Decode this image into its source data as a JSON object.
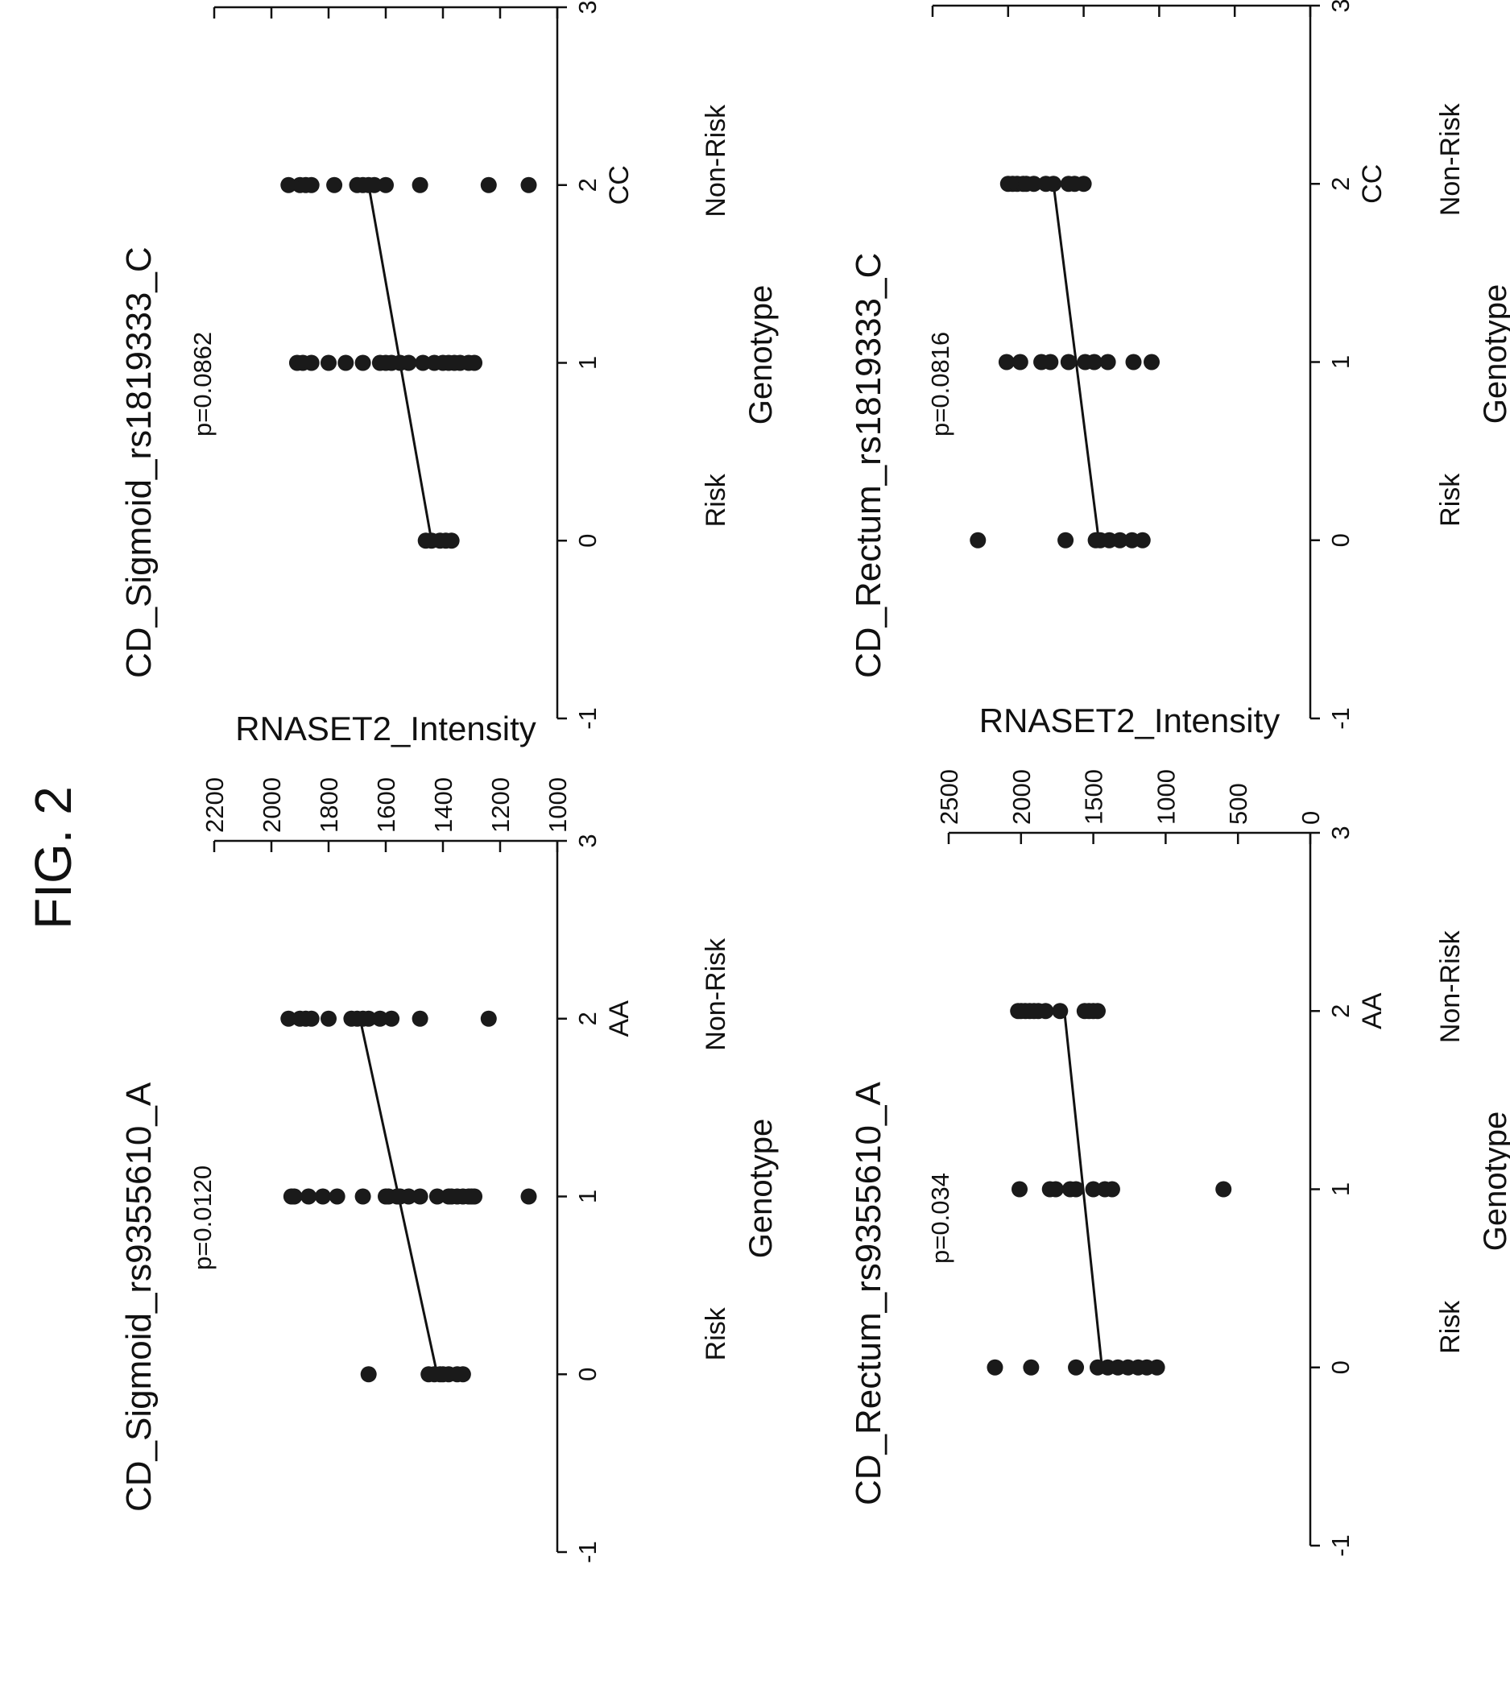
{
  "figure_title": "FIG. 2",
  "chart_data": [
    {
      "type": "scatter",
      "title": "CD_Sigmoid_rs9355610_A",
      "annotation": "p=0.0120",
      "ylabel": "RNASET2_Intensity",
      "xlabel": "Genotype",
      "xlim": [
        -1,
        3
      ],
      "ylim": [
        1000,
        2200
      ],
      "xticks": [
        "-1",
        "0",
        "1",
        "2",
        "3"
      ],
      "yticks": [
        "1000",
        "1200",
        "1400",
        "1600",
        "1800",
        "2000",
        "2200"
      ],
      "category_labels": [
        "Risk",
        "AA",
        "Non-Risk"
      ],
      "grid": false,
      "x": [
        0,
        0,
        0,
        0,
        0,
        0,
        0,
        0,
        1,
        1,
        1,
        1,
        1,
        1,
        1,
        1,
        1,
        1,
        1,
        1,
        1,
        1,
        1,
        1,
        1,
        1,
        1,
        1,
        1,
        2,
        2,
        2,
        2,
        2,
        2,
        2,
        2,
        2,
        2,
        2,
        2,
        2
      ],
      "y": [
        1660,
        1450,
        1430,
        1410,
        1400,
        1380,
        1350,
        1330,
        1930,
        1920,
        1870,
        1820,
        1770,
        1680,
        1600,
        1590,
        1560,
        1550,
        1520,
        1480,
        1420,
        1380,
        1370,
        1350,
        1330,
        1310,
        1300,
        1290,
        1100,
        1940,
        1900,
        1880,
        1860,
        1800,
        1720,
        1700,
        1680,
        1660,
        1620,
        1580,
        1480,
        1240
      ],
      "fit_line": {
        "x": [
          0,
          2
        ],
        "y": [
          1420,
          1690
        ]
      }
    },
    {
      "type": "scatter",
      "title": "CD_Sigmoid_rs1819333_C",
      "annotation": "p=0.0862",
      "ylabel": "RNASET2_Intensity",
      "xlabel": "Genotype",
      "xlim": [
        -1,
        3
      ],
      "ylim": [
        1000,
        2200
      ],
      "xticks": [
        "-1",
        "0",
        "1",
        "2",
        "3"
      ],
      "yticks": [
        "1000",
        "1200",
        "1400",
        "1600",
        "1800",
        "2000",
        "2200"
      ],
      "category_labels": [
        "Risk",
        "CC",
        "Non-Risk"
      ],
      "grid": false,
      "x": [
        0,
        0,
        0,
        0,
        0,
        1,
        1,
        1,
        1,
        1,
        1,
        1,
        1,
        1,
        1,
        1,
        1,
        1,
        1,
        1,
        1,
        1,
        1,
        1,
        2,
        2,
        2,
        2,
        2,
        2,
        2,
        2,
        2,
        2,
        2,
        2,
        2
      ],
      "y": [
        1460,
        1440,
        1410,
        1390,
        1370,
        1910,
        1890,
        1860,
        1800,
        1740,
        1680,
        1620,
        1600,
        1580,
        1550,
        1520,
        1470,
        1430,
        1400,
        1380,
        1360,
        1340,
        1310,
        1290,
        1940,
        1900,
        1880,
        1860,
        1780,
        1700,
        1680,
        1660,
        1640,
        1600,
        1480,
        1240,
        1100
      ],
      "fit_line": {
        "x": [
          0,
          2
        ],
        "y": [
          1440,
          1660
        ]
      }
    },
    {
      "type": "scatter",
      "title": "CD_Rectum_rs9355610_A",
      "annotation": "p=0.034",
      "ylabel": "RNASET2_Intensity",
      "xlabel": "Genotype",
      "xlim": [
        -1,
        3
      ],
      "ylim": [
        0,
        2500
      ],
      "xticks": [
        "-1",
        "0",
        "1",
        "2",
        "3"
      ],
      "yticks": [
        "0",
        "500",
        "1000",
        "1500",
        "2000",
        "2500"
      ],
      "category_labels": [
        "Risk",
        "AA",
        "Non-Risk"
      ],
      "grid": false,
      "x": [
        0,
        0,
        0,
        0,
        0,
        0,
        0,
        0,
        0,
        0,
        1,
        1,
        1,
        1,
        1,
        1,
        1,
        1,
        1,
        2,
        2,
        2,
        2,
        2,
        2,
        2,
        2,
        2,
        2,
        2,
        2
      ],
      "y": [
        2180,
        1930,
        1620,
        1470,
        1400,
        1330,
        1260,
        1190,
        1130,
        1060,
        2010,
        1800,
        1760,
        1660,
        1620,
        1500,
        1420,
        1370,
        600,
        2020,
        2000,
        1970,
        1940,
        1910,
        1880,
        1830,
        1730,
        1560,
        1530,
        1500,
        1470
      ],
      "fit_line": {
        "x": [
          0,
          2
        ],
        "y": [
          1440,
          1700
        ]
      }
    },
    {
      "type": "scatter",
      "title": "CD_Rectum_rs1819333_C",
      "annotation": "p=0.0816",
      "ylabel": "RNASET2_Intensity",
      "xlabel": "Genotype",
      "xlim": [
        -1,
        3
      ],
      "ylim": [
        0,
        2500
      ],
      "xticks": [
        "-1",
        "0",
        "1",
        "2",
        "3"
      ],
      "yticks": [
        "0",
        "500",
        "1000",
        "1500",
        "2000",
        "2500"
      ],
      "category_labels": [
        "Risk",
        "CC",
        "Non-Risk"
      ],
      "grid": false,
      "x": [
        0,
        0,
        0,
        0,
        0,
        0,
        0,
        0,
        1,
        1,
        1,
        1,
        1,
        1,
        1,
        1,
        1,
        1,
        2,
        2,
        2,
        2,
        2,
        2,
        2,
        2,
        2,
        2,
        2
      ],
      "y": [
        2200,
        1620,
        1420,
        1390,
        1330,
        1260,
        1180,
        1110,
        2010,
        1920,
        1780,
        1720,
        1600,
        1490,
        1430,
        1340,
        1170,
        1050,
        2000,
        1970,
        1940,
        1900,
        1880,
        1830,
        1750,
        1700,
        1600,
        1560,
        1500
      ],
      "fit_line": {
        "x": [
          0,
          2
        ],
        "y": [
          1400,
          1700
        ]
      }
    }
  ]
}
